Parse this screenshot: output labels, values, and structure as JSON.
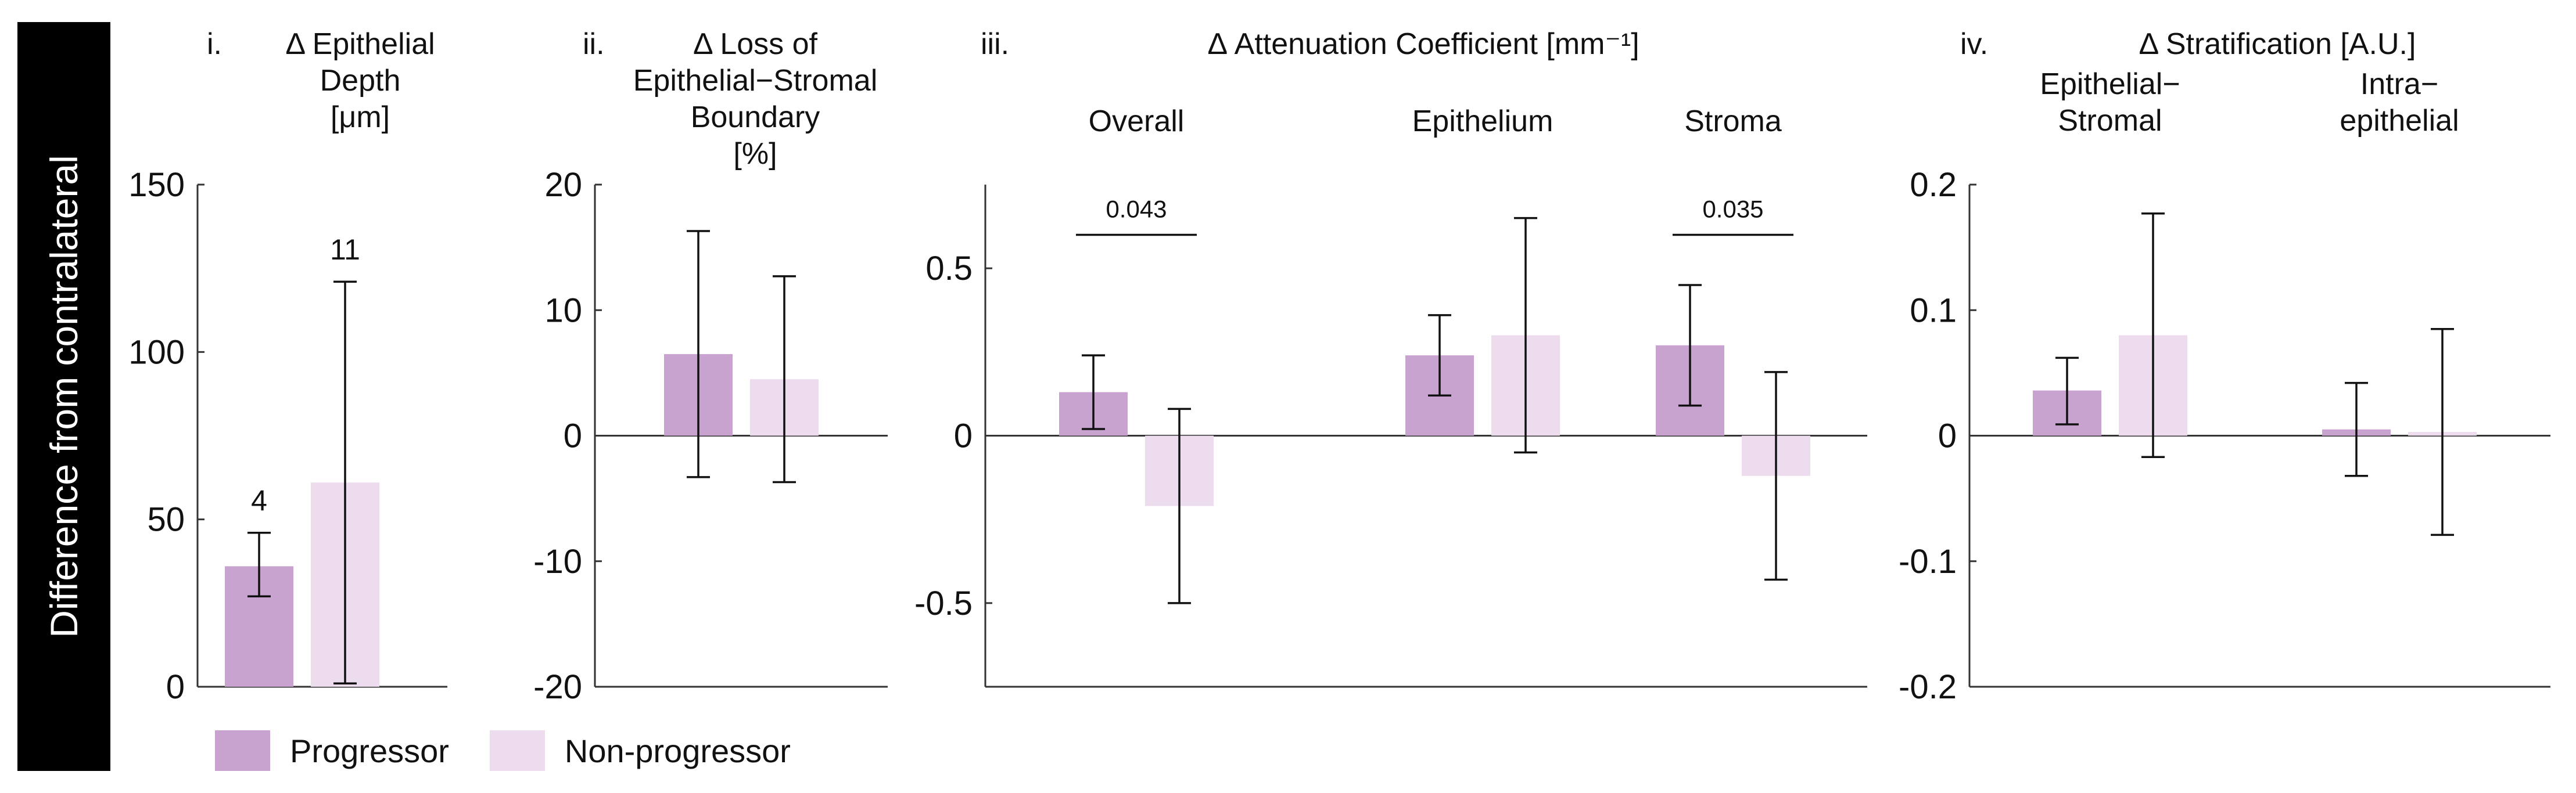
{
  "y_axis_label": "Difference from contralateral",
  "colors": {
    "progressor": "#c9a3cf",
    "non_progressor": "#eddbee",
    "axis": "#333333"
  },
  "legend": [
    {
      "label": "Progressor",
      "color_key": "progressor"
    },
    {
      "label": "Non-progressor",
      "color_key": "non_progressor"
    }
  ],
  "chart_data": [
    {
      "type": "bar",
      "roman": "i.",
      "title_lines": [
        "Δ Epithelial",
        "Depth",
        "[μm]"
      ],
      "ylim": [
        0,
        150
      ],
      "yticks": [
        0,
        50,
        100,
        150
      ],
      "ytick_labels": [
        "0",
        "50",
        "100",
        "150"
      ],
      "groups": [
        {
          "label": "",
          "bars": [
            {
              "series": "Progressor",
              "value": 36,
              "err_low": 27,
              "err_high": 46,
              "annotation": "4"
            },
            {
              "series": "Non-progressor",
              "value": 61,
              "err_low": 1,
              "err_high": 121,
              "annotation": "11"
            }
          ]
        }
      ],
      "significance": []
    },
    {
      "type": "bar",
      "roman": "ii.",
      "title_lines": [
        "Δ Loss of",
        "Epithelial−Stromal",
        "Boundary",
        "[%]"
      ],
      "ylim": [
        -20,
        20
      ],
      "yticks": [
        -20,
        -10,
        0,
        10,
        20
      ],
      "ytick_labels": [
        "-20",
        "-10",
        "0",
        "10",
        "20"
      ],
      "groups": [
        {
          "label": "",
          "bars": [
            {
              "series": "Progressor",
              "value": 6.5,
              "err_low": -3.3,
              "err_high": 16.3
            },
            {
              "series": "Non-progressor",
              "value": 4.5,
              "err_low": -3.7,
              "err_high": 12.7
            }
          ]
        }
      ],
      "significance": []
    },
    {
      "type": "bar",
      "roman": "iii.",
      "title_lines": [
        "Δ Attenuation Coefficient [mm⁻¹]"
      ],
      "ylim": [
        -0.75,
        0.75
      ],
      "yticks": [
        -0.5,
        0,
        0.5
      ],
      "ytick_labels": [
        "-0.5",
        "0",
        "0.5"
      ],
      "groups": [
        {
          "label": "Overall",
          "bars": [
            {
              "series": "Progressor",
              "value": 0.13,
              "err_low": 0.02,
              "err_high": 0.24
            },
            {
              "series": "Non-progressor",
              "value": -0.21,
              "err_low": -0.5,
              "err_high": 0.08
            }
          ]
        },
        {
          "label": "Epithelium",
          "bars": [
            {
              "series": "Progressor",
              "value": 0.24,
              "err_low": 0.12,
              "err_high": 0.36
            },
            {
              "series": "Non-progressor",
              "value": 0.3,
              "err_low": -0.05,
              "err_high": 0.65
            }
          ]
        },
        {
          "label": "Stroma",
          "bars": [
            {
              "series": "Progressor",
              "value": 0.27,
              "err_low": 0.09,
              "err_high": 0.45
            },
            {
              "series": "Non-progressor",
              "value": -0.12,
              "err_low": -0.43,
              "err_high": 0.19
            }
          ]
        }
      ],
      "significance": [
        {
          "group": 0,
          "p_value": "0.043",
          "y": 0.6
        },
        {
          "group": 2,
          "p_value": "0.035",
          "y": 0.6
        }
      ]
    },
    {
      "type": "bar",
      "roman": "iv.",
      "title_lines": [
        "Δ Stratification [A.U.]"
      ],
      "ylim": [
        -0.2,
        0.2
      ],
      "yticks": [
        -0.2,
        -0.1,
        0,
        0.1,
        0.2
      ],
      "ytick_labels": [
        "-0.2",
        "-0.1",
        "0",
        "0.1",
        "0.2"
      ],
      "groups": [
        {
          "label_lines": [
            "Epithelial−",
            "Stromal"
          ],
          "bars": [
            {
              "series": "Progressor",
              "value": 0.036,
              "err_low": 0.009,
              "err_high": 0.062
            },
            {
              "series": "Non-progressor",
              "value": 0.08,
              "err_low": -0.017,
              "err_high": 0.177
            }
          ]
        },
        {
          "label_lines": [
            "Intra−",
            "epithelial"
          ],
          "bars": [
            {
              "series": "Progressor",
              "value": 0.005,
              "err_low": -0.032,
              "err_high": 0.042
            },
            {
              "series": "Non-progressor",
              "value": 0.003,
              "err_low": -0.079,
              "err_high": 0.085
            }
          ]
        }
      ],
      "significance": []
    }
  ]
}
